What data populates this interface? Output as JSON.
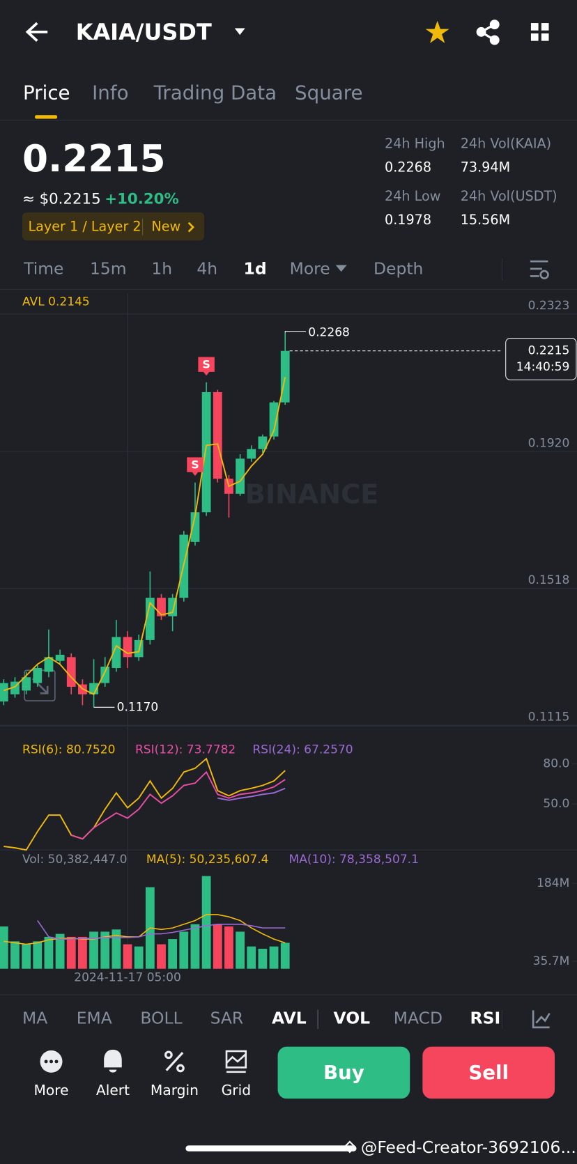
{
  "header": {
    "pair": "KAIA/USDT"
  },
  "tabs": [
    "Price",
    "Info",
    "Trading Data",
    "Square"
  ],
  "price": {
    "last": "0.2215",
    "usd": "≈ $0.2215",
    "change": "+10.20%",
    "tag": "Layer 1 / Layer 2",
    "tag_new": "New"
  },
  "stats": [
    {
      "label": "24h High",
      "value": "0.2268"
    },
    {
      "label": "24h Vol(KAIA)",
      "value": "73.94M"
    },
    {
      "label": "24h Low",
      "value": "0.1978"
    },
    {
      "label": "24h Vol(USDT)",
      "value": "15.56M"
    }
  ],
  "intervals": [
    "Time",
    "15m",
    "1h",
    "4h",
    "1d",
    "More",
    "Depth"
  ],
  "watermark_brand": "BINANCE",
  "chart_data": [
    {
      "type": "candlestick",
      "up_color": "#2ebd85",
      "down_color": "#f6465d",
      "categories": [
        null,
        null,
        null,
        null,
        null,
        null,
        null,
        null,
        null,
        null,
        null,
        "2024-11-17 05:00",
        null,
        null,
        null,
        null,
        null,
        null,
        null,
        null,
        null,
        null,
        null,
        null,
        null,
        null
      ],
      "open": [
        0.1187,
        0.1208,
        0.1219,
        0.1241,
        0.1274,
        0.1306,
        0.1317,
        0.1237,
        0.1208,
        0.1241,
        0.1285,
        0.1376,
        0.1317,
        0.1367,
        0.1491,
        0.1437,
        0.1491,
        0.1655,
        0.1742,
        0.2094,
        0.184,
        0.1796,
        0.1899,
        0.1927,
        0.1964,
        0.2064
      ],
      "high": [
        0.1252,
        0.1258,
        0.1274,
        0.1296,
        0.1398,
        0.1339,
        0.1328,
        0.1252,
        0.1311,
        0.1317,
        0.1426,
        0.1393,
        0.1383,
        0.1568,
        0.1502,
        0.1502,
        0.1687,
        0.1829,
        0.2123,
        0.2101,
        0.1851,
        0.1912,
        0.1938,
        0.197,
        0.2068,
        0.2268
      ],
      "low": [
        0.1176,
        0.1198,
        0.1208,
        0.123,
        0.1258,
        0.1296,
        0.1208,
        0.1176,
        0.117,
        0.123,
        0.1274,
        0.1285,
        0.1306,
        0.1354,
        0.1426,
        0.1393,
        0.148,
        0.1644,
        0.1731,
        0.1829,
        0.1726,
        0.179,
        0.189,
        0.1916,
        0.1955,
        0.2057
      ],
      "close": [
        0.1241,
        0.1245,
        0.1258,
        0.1285,
        0.1317,
        0.1324,
        0.123,
        0.1208,
        0.1241,
        0.1289,
        0.1376,
        0.1317,
        0.1367,
        0.1491,
        0.1437,
        0.1491,
        0.1676,
        0.1742,
        0.2094,
        0.184,
        0.1796,
        0.1899,
        0.1927,
        0.1964,
        0.2064,
        0.2215
      ],
      "series": [
        {
          "name": "AVL 0.2145",
          "color": "#f0b90b",
          "values": [
            0.1219,
            0.123,
            0.1263,
            0.1296,
            0.1317,
            0.1296,
            0.1258,
            0.1224,
            0.1208,
            0.1274,
            0.135,
            0.1328,
            0.1333,
            0.1476,
            0.1441,
            0.1448,
            0.1589,
            0.1731,
            0.1938,
            0.1942,
            0.1818,
            0.1833,
            0.1877,
            0.1912,
            0.1981,
            0.2138
          ]
        }
      ],
      "ylim": [
        0.1115,
        0.2384
      ],
      "yticks": [
        0.2323,
        {
          "value": 0.192,
          "label": "0.1920"
        },
        0.1518,
        0.1115
      ],
      "grid": true,
      "annotations": {
        "high": "0.2268",
        "low": "0.1170",
        "last": "0.2215",
        "countdown": "14:40:59",
        "signal": "S"
      }
    },
    {
      "type": "line",
      "series": [
        {
          "name": "RSI(6): 80.7520",
          "color": "#f0b90b",
          "values": [
            18.3,
            17.2,
            15.6,
            29.4,
            41.7,
            41.7,
            26.7,
            23.9,
            32.2,
            46.1,
            58.3,
            47.2,
            54.4,
            67.2,
            54.4,
            61.7,
            73.9,
            76.7,
            83.9,
            60.0,
            56.1,
            60.0,
            61.7,
            63.9,
            67.2,
            75.0
          ]
        },
        {
          "name": "RSI(12): 73.7782",
          "color": "#e84fa4",
          "values": [
            null,
            null,
            null,
            null,
            null,
            null,
            26.7,
            23.9,
            32.2,
            37.8,
            43.3,
            39.4,
            46.1,
            57.2,
            50.6,
            56.1,
            63.9,
            65.6,
            73.9,
            57.2,
            54.4,
            57.2,
            58.3,
            60.0,
            62.8,
            68.3
          ]
        },
        {
          "name": "RSI(24): 67.2570",
          "color": "#9b6bd6",
          "values": [
            null,
            null,
            null,
            null,
            null,
            null,
            null,
            null,
            null,
            null,
            null,
            null,
            null,
            null,
            null,
            null,
            null,
            null,
            null,
            54.4,
            52.8,
            54.4,
            55.6,
            57.2,
            58.3,
            61.7
          ]
        }
      ],
      "ylim": [
        15.6,
        98.9
      ],
      "yticks": [
        {
          "value": 80,
          "label": "80.0"
        },
        {
          "value": 50,
          "label": "50.0"
        }
      ]
    },
    {
      "type": "bar",
      "legend": "Vol: 50,382,447.0",
      "values": [
        102.1,
        73.8,
        68.2,
        73.8,
        82.3,
        88.0,
        82.3,
        82.3,
        92.2,
        92.2,
        96.4,
        68.2,
        64.0,
        176.9,
        68.2,
        78.1,
        92.2,
        106.3,
        198.1,
        106.3,
        102.1,
        92.2,
        64.0,
        59.7,
        64.0,
        71.0
      ],
      "series": [
        {
          "name": "MA(5): 50,235,607.4",
          "color": "#f0b90b",
          "values": [
            73.8,
            71.0,
            68.2,
            71.0,
            76.7,
            79.5,
            79.5,
            78.1,
            78.1,
            82.3,
            85.1,
            82.3,
            82.3,
            99.3,
            96.4,
            99.3,
            106.3,
            113.4,
            124.7,
            124.7,
            120.4,
            113.4,
            99.3,
            88.0,
            78.1,
            71.0
          ]
        },
        {
          "name": "MA(10): 78,358,507.1",
          "color": "#9b6bd6",
          "values": [
            null,
            null,
            null,
            113.4,
            82.3,
            78.1,
            78.1,
            79.5,
            79.5,
            80.9,
            80.9,
            80.9,
            82.3,
            88.0,
            88.0,
            90.8,
            95.0,
            99.3,
            103.5,
            106.3,
            106.3,
            106.3,
            103.5,
            99.3,
            99.3,
            99.3
          ]
        }
      ],
      "ylim": [
        21.6,
        212.4
      ],
      "yticks": [
        {
          "value": 184,
          "label": "184M"
        },
        {
          "value": 35.7,
          "label": "35.7M"
        }
      ]
    }
  ],
  "indicators": [
    "MA",
    "EMA",
    "BOLL",
    "SAR",
    "AVL",
    "VOL",
    "MACD",
    "RSI"
  ],
  "actions": [
    "More",
    "Alert",
    "Margin",
    "Grid"
  ],
  "buy": "Buy",
  "sell": "Sell",
  "watermark": "@Feed-Creator-3692106..."
}
